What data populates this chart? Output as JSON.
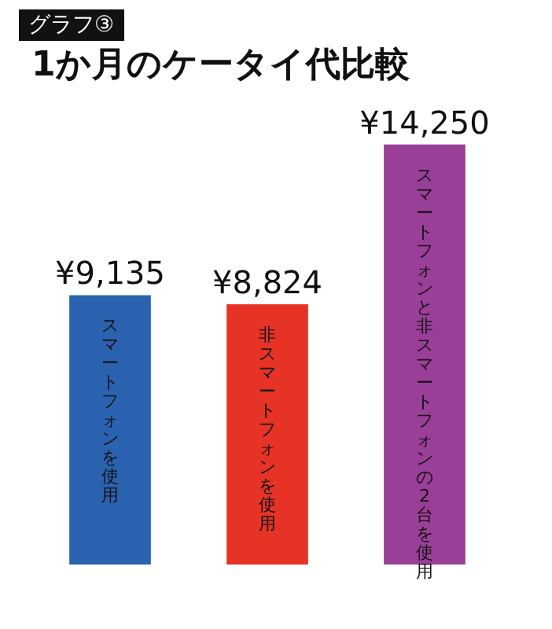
{
  "chart_data": {
    "type": "bar",
    "title": "1か月のケータイ代比較",
    "annotations": [
      "グラフ③"
    ],
    "categories": [
      "スマートフォンを使用",
      "非スマートフォンを使用",
      "スマートフォンと非スマートフォンの2台を使用"
    ],
    "values": [
      9135,
      8824,
      14250
    ],
    "colors": [
      "#2a62b0",
      "#e63325",
      "#9a3f98"
    ],
    "value_labels": [
      "¥9,135",
      "¥8,824",
      "¥14,250"
    ]
  }
}
